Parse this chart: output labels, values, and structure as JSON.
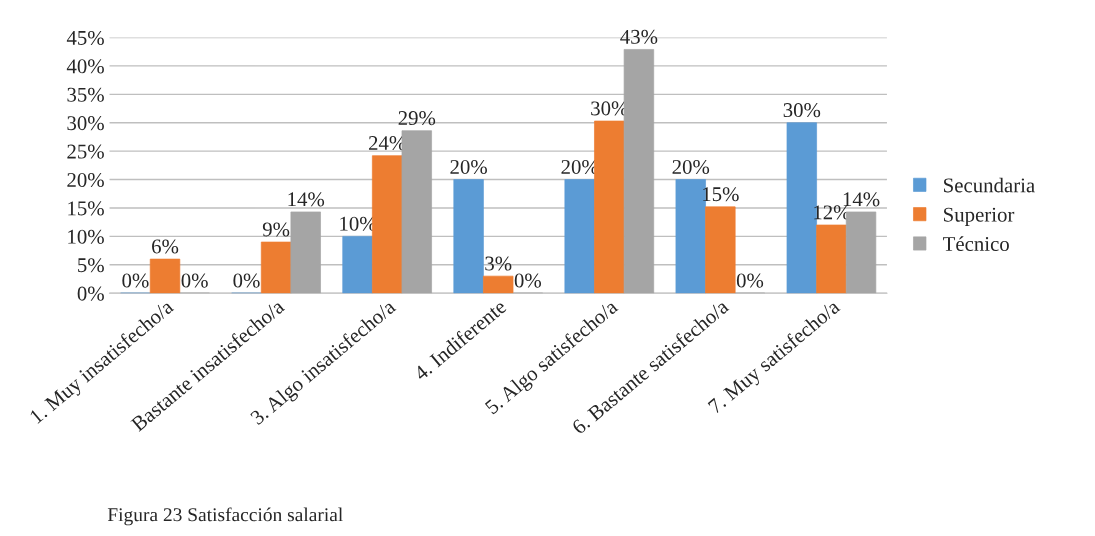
{
  "chart_data": {
    "type": "bar",
    "categories": [
      "1. Muy insatisfecho/a",
      "Bastante insatisfecho/a",
      "3. Algo insatisfecho/a",
      "4. Indiferente",
      "5. Algo satisfecho/a",
      "6. Bastante satisfecho/a",
      "7. Muy satisfecho/a"
    ],
    "series": [
      {
        "name": "Secundaria",
        "color": "#5b9bd5",
        "values": [
          0,
          0,
          10,
          20,
          20,
          20,
          30
        ],
        "value_labels": [
          "0%",
          "0%",
          "10%",
          "20%",
          "20%",
          "20%",
          "30%"
        ]
      },
      {
        "name": "Superior",
        "color": "#ed7d31",
        "values": [
          6,
          9,
          24.2,
          3,
          30.3,
          15.2,
          12
        ],
        "value_labels": [
          "6%",
          "9%",
          "24%",
          "3%",
          "30%",
          "15%",
          "12%"
        ]
      },
      {
        "name": "Técnico",
        "color": "#a5a5a5",
        "values": [
          0,
          14.3,
          28.6,
          0,
          42.9,
          0,
          14.3
        ],
        "value_labels": [
          "0%",
          "14%",
          "29%",
          "0%",
          "43%",
          "0%",
          "14%"
        ]
      }
    ],
    "ylim": [
      0,
      45
    ],
    "yticks": [
      {
        "value": 0,
        "label": "0%"
      },
      {
        "value": 5,
        "label": "5%"
      },
      {
        "value": 10,
        "label": "10%"
      },
      {
        "value": 15,
        "label": "15%"
      },
      {
        "value": 20,
        "label": "20%"
      },
      {
        "value": 25,
        "label": "25%"
      },
      {
        "value": 30,
        "label": "30%"
      },
      {
        "value": 35,
        "label": "35%"
      },
      {
        "value": 40,
        "label": "40%"
      },
      {
        "value": 45,
        "label": "45%"
      }
    ],
    "grid": "y",
    "legend": "right",
    "annotations": [
      "Figura 23 Satisfacción salarial"
    ]
  }
}
